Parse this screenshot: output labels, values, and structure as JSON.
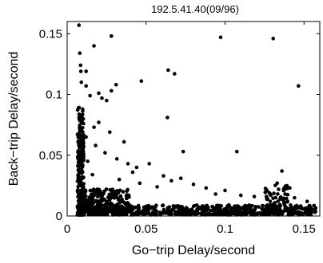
{
  "chart_data": {
    "type": "scatter",
    "title": "192.5.41.40(09/96)",
    "xlabel": "Go−trip Delay/second",
    "ylabel": "Back−trip Delay/second",
    "xlim": [
      0,
      0.16
    ],
    "ylim": [
      0,
      0.16
    ],
    "xticks": [
      0,
      0.05,
      0.1,
      0.15
    ],
    "yticks": [
      0,
      0.05,
      0.1,
      0.15
    ],
    "xtick_labels": [
      "0",
      "0.05",
      "0.1",
      "0.15"
    ],
    "ytick_labels": [
      "0",
      "0.05",
      "0.1",
      "0.15"
    ],
    "grid": false,
    "marker_color": "#000000",
    "outliers": [
      {
        "x": 0.0075,
        "y": 0.157
      },
      {
        "x": 0.017,
        "y": 0.14
      },
      {
        "x": 0.028,
        "y": 0.148
      },
      {
        "x": 0.0972,
        "y": 0.147
      },
      {
        "x": 0.1305,
        "y": 0.146
      },
      {
        "x": 0.008,
        "y": 0.134
      },
      {
        "x": 0.0085,
        "y": 0.124
      },
      {
        "x": 0.0087,
        "y": 0.119
      },
      {
        "x": 0.012,
        "y": 0.119
      },
      {
        "x": 0.047,
        "y": 0.111
      },
      {
        "x": 0.064,
        "y": 0.12
      },
      {
        "x": 0.068,
        "y": 0.117
      },
      {
        "x": 0.031,
        "y": 0.108
      },
      {
        "x": 0.028,
        "y": 0.103
      },
      {
        "x": 0.02,
        "y": 0.101
      },
      {
        "x": 0.012,
        "y": 0.107
      },
      {
        "x": 0.009,
        "y": 0.11
      },
      {
        "x": 0.022,
        "y": 0.097
      },
      {
        "x": 0.025,
        "y": 0.095
      },
      {
        "x": 0.0145,
        "y": 0.099
      },
      {
        "x": 0.0635,
        "y": 0.081
      },
      {
        "x": 0.0735,
        "y": 0.053
      },
      {
        "x": 0.1075,
        "y": 0.053
      },
      {
        "x": 0.1465,
        "y": 0.107
      },
      {
        "x": 0.136,
        "y": 0.037
      },
      {
        "x": 0.02,
        "y": 0.077
      },
      {
        "x": 0.017,
        "y": 0.073
      },
      {
        "x": 0.027,
        "y": 0.069
      },
      {
        "x": 0.012,
        "y": 0.065
      },
      {
        "x": 0.018,
        "y": 0.058
      },
      {
        "x": 0.024,
        "y": 0.052
      },
      {
        "x": 0.0315,
        "y": 0.047
      },
      {
        "x": 0.0385,
        "y": 0.043
      },
      {
        "x": 0.044,
        "y": 0.04
      },
      {
        "x": 0.052,
        "y": 0.043
      },
      {
        "x": 0.061,
        "y": 0.033
      },
      {
        "x": 0.066,
        "y": 0.029
      },
      {
        "x": 0.072,
        "y": 0.031
      },
      {
        "x": 0.08,
        "y": 0.026
      },
      {
        "x": 0.088,
        "y": 0.023
      },
      {
        "x": 0.1,
        "y": 0.021
      },
      {
        "x": 0.11,
        "y": 0.017
      },
      {
        "x": 0.1185,
        "y": 0.016
      },
      {
        "x": 0.126,
        "y": 0.022
      },
      {
        "x": 0.133,
        "y": 0.027
      },
      {
        "x": 0.138,
        "y": 0.018
      },
      {
        "x": 0.144,
        "y": 0.015
      },
      {
        "x": 0.152,
        "y": 0.012
      },
      {
        "x": 0.033,
        "y": 0.03
      },
      {
        "x": 0.046,
        "y": 0.027
      },
      {
        "x": 0.057,
        "y": 0.024
      },
      {
        "x": 0.013,
        "y": 0.045
      },
      {
        "x": 0.016,
        "y": 0.034
      },
      {
        "x": 0.036,
        "y": 0.061
      },
      {
        "x": 0.0415,
        "y": 0.036
      },
      {
        "x": 0.094,
        "y": 0.018
      },
      {
        "x": 0.128,
        "y": 0.019
      },
      {
        "x": 0.141,
        "y": 0.023
      }
    ],
    "dense_clusters": [
      {
        "name": "floor band",
        "x_range": [
          0.007,
          0.158
        ],
        "y_range": [
          0.001,
          0.009
        ],
        "count": 640
      },
      {
        "name": "vertical band",
        "x_range": [
          0.0065,
          0.0105
        ],
        "y_range": [
          0.001,
          0.09
        ],
        "count": 300
      },
      {
        "name": "knee",
        "x_range": [
          0.008,
          0.04
        ],
        "y_range": [
          0.004,
          0.022
        ],
        "count": 300
      },
      {
        "name": "right cluster",
        "x_range": [
          0.125,
          0.14
        ],
        "y_range": [
          0.004,
          0.026
        ],
        "count": 70
      }
    ]
  }
}
